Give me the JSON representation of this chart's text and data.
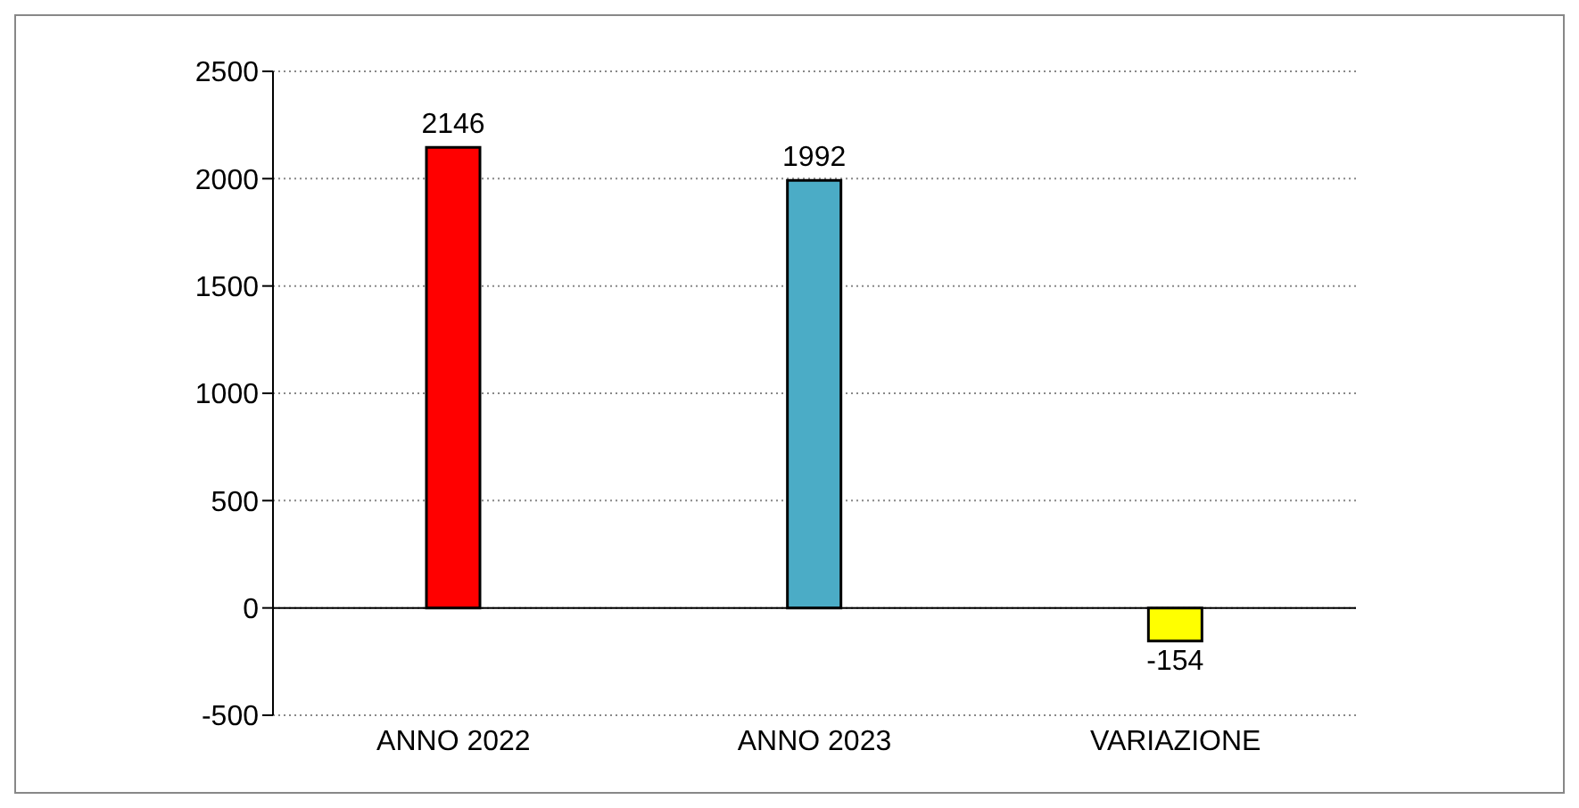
{
  "chart_data": {
    "type": "bar",
    "categories": [
      "ANNO 2022",
      "ANNO 2023",
      "VARIAZIONE"
    ],
    "values": [
      2146,
      1992,
      -154
    ],
    "colors": [
      "#ff0000",
      "#4bacc6",
      "#ffff00"
    ],
    "ylim": [
      -500,
      2500
    ],
    "yticks": [
      -500,
      0,
      500,
      1000,
      1500,
      2000,
      2500
    ],
    "grid": "y",
    "data_labels": true,
    "legend": false
  }
}
